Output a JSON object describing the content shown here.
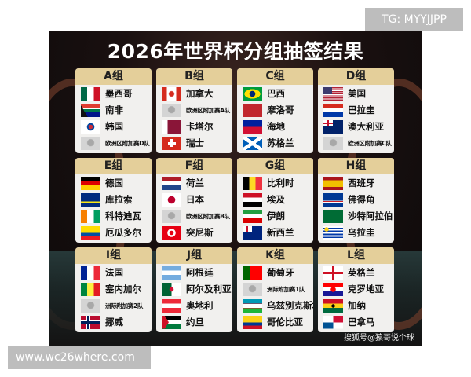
{
  "title": "2026年世界杯分组抽签结果",
  "watermark": "搜狐号@猿哥说个球",
  "tg_label": "TG: MYYJJPP",
  "site_label": "www.wc26where.com",
  "groups": [
    {
      "name": "A组",
      "teams": [
        {
          "name": "墨西哥",
          "flag": "mx"
        },
        {
          "name": "南非",
          "flag": "za"
        },
        {
          "name": "韩国",
          "flag": "kr"
        },
        {
          "name": "欧洲区附加赛D队",
          "flag": "ph"
        }
      ]
    },
    {
      "name": "B组",
      "teams": [
        {
          "name": "加拿大",
          "flag": "ca"
        },
        {
          "name": "欧洲区附加赛A队",
          "flag": "ph"
        },
        {
          "name": "卡塔尔",
          "flag": "qa"
        },
        {
          "name": "瑞士",
          "flag": "ch"
        }
      ]
    },
    {
      "name": "C组",
      "teams": [
        {
          "name": "巴西",
          "flag": "br"
        },
        {
          "name": "摩洛哥",
          "flag": "ma"
        },
        {
          "name": "海地",
          "flag": "ht"
        },
        {
          "name": "苏格兰",
          "flag": "sc"
        }
      ]
    },
    {
      "name": "D组",
      "teams": [
        {
          "name": "美国",
          "flag": "us"
        },
        {
          "name": "巴拉圭",
          "flag": "py"
        },
        {
          "name": "澳大利亚",
          "flag": "au"
        },
        {
          "name": "欧洲区附加赛C队",
          "flag": "ph"
        }
      ]
    },
    {
      "name": "E组",
      "teams": [
        {
          "name": "德国",
          "flag": "de"
        },
        {
          "name": "库拉索",
          "flag": "cw"
        },
        {
          "name": "科特迪瓦",
          "flag": "ci"
        },
        {
          "name": "厄瓜多尔",
          "flag": "ec"
        }
      ]
    },
    {
      "name": "F组",
      "teams": [
        {
          "name": "荷兰",
          "flag": "nl"
        },
        {
          "name": "日本",
          "flag": "jp"
        },
        {
          "name": "欧洲区附加赛B队",
          "flag": "ph"
        },
        {
          "name": "突尼斯",
          "flag": "tn"
        }
      ]
    },
    {
      "name": "G组",
      "teams": [
        {
          "name": "比利时",
          "flag": "be"
        },
        {
          "name": "埃及",
          "flag": "eg"
        },
        {
          "name": "伊朗",
          "flag": "ir"
        },
        {
          "name": "新西兰",
          "flag": "nz"
        }
      ]
    },
    {
      "name": "H组",
      "teams": [
        {
          "name": "西班牙",
          "flag": "es"
        },
        {
          "name": "佛得角",
          "flag": "cv"
        },
        {
          "name": "沙特阿拉伯",
          "flag": "sa"
        },
        {
          "name": "乌拉圭",
          "flag": "uy"
        }
      ]
    },
    {
      "name": "I组",
      "teams": [
        {
          "name": "法国",
          "flag": "fr"
        },
        {
          "name": "塞内加尔",
          "flag": "sn"
        },
        {
          "name": "洲际附加赛2队",
          "flag": "ph"
        },
        {
          "name": "挪威",
          "flag": "no"
        }
      ]
    },
    {
      "name": "J组",
      "teams": [
        {
          "name": "阿根廷",
          "flag": "ar"
        },
        {
          "name": "阿尔及利亚",
          "flag": "dz"
        },
        {
          "name": "奥地利",
          "flag": "at"
        },
        {
          "name": "约旦",
          "flag": "jo"
        }
      ]
    },
    {
      "name": "K组",
      "teams": [
        {
          "name": "葡萄牙",
          "flag": "pt"
        },
        {
          "name": "洲际附加赛1队",
          "flag": "ph"
        },
        {
          "name": "乌兹别克斯坦",
          "flag": "uz"
        },
        {
          "name": "哥伦比亚",
          "flag": "co"
        }
      ]
    },
    {
      "name": "L组",
      "teams": [
        {
          "name": "英格兰",
          "flag": "en"
        },
        {
          "name": "克罗地亚",
          "flag": "hr"
        },
        {
          "name": "加纳",
          "flag": "gh"
        },
        {
          "name": "巴拿马",
          "flag": "pa"
        }
      ]
    }
  ]
}
